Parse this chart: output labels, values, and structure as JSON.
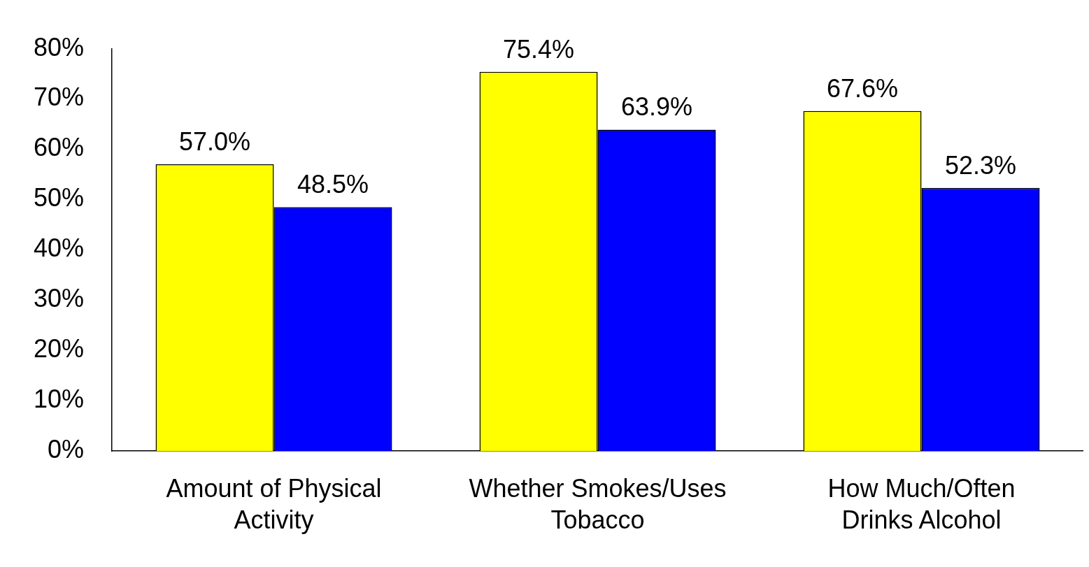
{
  "chart_data": {
    "type": "bar",
    "categories": [
      "Amount of Physical Activity",
      "Whether Smokes/Uses Tobacco",
      "How Much/Often Drinks Alcohol"
    ],
    "series": [
      {
        "color": "#ffff00",
        "values": [
          57.0,
          75.4,
          67.6
        ],
        "value_labels": [
          "57.0%",
          "75.4%",
          "67.6%"
        ]
      },
      {
        "color": "#0000ff",
        "values": [
          48.5,
          63.9,
          52.3
        ],
        "value_labels": [
          "48.5%",
          "63.9%",
          "52.3%"
        ]
      }
    ],
    "ylim": [
      0,
      80
    ],
    "yticks": [
      {
        "value": 0,
        "label": "0%"
      },
      {
        "value": 10,
        "label": "10%"
      },
      {
        "value": 20,
        "label": "20%"
      },
      {
        "value": 30,
        "label": "30%"
      },
      {
        "value": 40,
        "label": "40%"
      },
      {
        "value": 50,
        "label": "50%"
      },
      {
        "value": 60,
        "label": "60%"
      },
      {
        "value": 70,
        "label": "70%"
      },
      {
        "value": 80,
        "label": "80%"
      }
    ],
    "grid": false,
    "legend": false
  }
}
